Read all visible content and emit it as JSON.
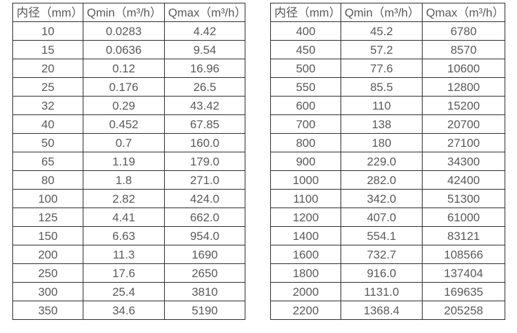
{
  "colors": {
    "background": "#ffffff",
    "border": "#2b2b2b",
    "text": "#595959"
  },
  "tables": [
    {
      "name": "diameter-flow-table-left",
      "headers": [
        "内径（mm）",
        "Qmin（m³/h）",
        "Qmax（m³/h）"
      ],
      "rows": [
        [
          "10",
          "0.0283",
          "4.42"
        ],
        [
          "15",
          "0.0636",
          "9.54"
        ],
        [
          "20",
          "0.12",
          "16.96"
        ],
        [
          "25",
          "0.176",
          "26.5"
        ],
        [
          "32",
          "0.29",
          "43.42"
        ],
        [
          "40",
          "0.452",
          "67.85"
        ],
        [
          "50",
          "0.7",
          "160.0"
        ],
        [
          "65",
          "1.19",
          "179.0"
        ],
        [
          "80",
          "1.8",
          "271.0"
        ],
        [
          "100",
          "2.82",
          "424.0"
        ],
        [
          "125",
          "4.41",
          "662.0"
        ],
        [
          "150",
          "6.63",
          "954.0"
        ],
        [
          "200",
          "11.3",
          "1690"
        ],
        [
          "250",
          "17.6",
          "2650"
        ],
        [
          "300",
          "25.4",
          "3810"
        ],
        [
          "350",
          "34.6",
          "5190"
        ]
      ]
    },
    {
      "name": "diameter-flow-table-right",
      "headers": [
        "内径（mm）",
        "Qmin（m³/h）",
        "Qmax（m³/h）"
      ],
      "rows": [
        [
          "400",
          "45.2",
          "6780"
        ],
        [
          "450",
          "57.2",
          "8570"
        ],
        [
          "500",
          "77.6",
          "10600"
        ],
        [
          "550",
          "85.5",
          "12800"
        ],
        [
          "600",
          "110",
          "15200"
        ],
        [
          "700",
          "138",
          "20700"
        ],
        [
          "800",
          "180",
          "27100"
        ],
        [
          "900",
          "229.0",
          "34300"
        ],
        [
          "1000",
          "282.0",
          "42400"
        ],
        [
          "1100",
          "342.0",
          "51300"
        ],
        [
          "1200",
          "407.0",
          "61000"
        ],
        [
          "1400",
          "554.1",
          "83121"
        ],
        [
          "1600",
          "732.7",
          "108566"
        ],
        [
          "1800",
          "916.0",
          "137404"
        ],
        [
          "2000",
          "1131.0",
          "169635"
        ],
        [
          "2200",
          "1368.4",
          "205258"
        ]
      ]
    }
  ]
}
